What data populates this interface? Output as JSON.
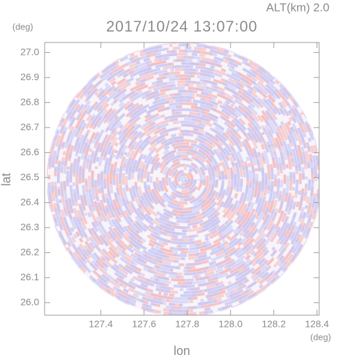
{
  "chart_data": {
    "type": "image",
    "title": "2017/10/24 13:07:00",
    "annotation": "ALT(km) 2.0",
    "x_label": "lon",
    "y_label": "lat",
    "x_unit": "(deg)",
    "y_unit": "(deg)",
    "xlim": [
      127.14,
      128.41
    ],
    "ylim": [
      25.95,
      27.04
    ],
    "xticks": [
      127.4,
      127.6,
      127.8,
      {
        "value": 128,
        "label": "128.0"
      },
      128.2,
      128.4
    ],
    "yticks": [
      {
        "value": 26,
        "label": "26.0"
      },
      26.1,
      26.2,
      26.3,
      26.4,
      26.5,
      26.6,
      26.7,
      26.8,
      26.9,
      {
        "value": 27,
        "label": "27.0"
      }
    ]
  }
}
